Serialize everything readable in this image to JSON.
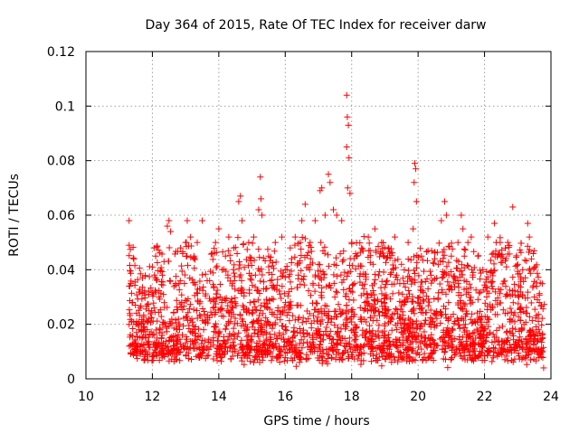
{
  "chart_data": {
    "type": "scatter",
    "title": "Day 364 of 2015, Rate Of TEC Index for receiver darw",
    "xlabel": "GPS time / hours",
    "ylabel": "ROTI / TECUs",
    "xlim": [
      10,
      24
    ],
    "ylim": [
      0,
      0.12
    ],
    "x_ticks": [
      10,
      12,
      14,
      16,
      18,
      20,
      22,
      24
    ],
    "x_tick_labels": [
      "10",
      "12",
      "14",
      "16",
      "18",
      "20",
      "22",
      "24"
    ],
    "y_ticks": [
      0,
      0.02,
      0.04,
      0.06,
      0.08,
      0.1,
      0.12
    ],
    "y_tick_labels": [
      "0",
      "0.02",
      "0.04",
      "0.06",
      "0.08",
      "0.1",
      "0.12"
    ],
    "grid": true,
    "marker": "plus",
    "color": "#ff0000",
    "series": [
      {
        "name": "ROTI",
        "points": [
          [
            11.3,
            0.058
          ],
          [
            11.3,
            0.049
          ],
          [
            11.35,
            0.035
          ],
          [
            11.4,
            0.028
          ],
          [
            11.5,
            0.02
          ],
          [
            11.6,
            0.018
          ],
          [
            11.7,
            0.037
          ],
          [
            11.8,
            0.015
          ],
          [
            11.9,
            0.025
          ],
          [
            12.0,
            0.041
          ],
          [
            12.05,
            0.048
          ],
          [
            12.1,
            0.045
          ],
          [
            12.2,
            0.03
          ],
          [
            12.3,
            0.038
          ],
          [
            12.35,
            0.043
          ],
          [
            12.45,
            0.056
          ],
          [
            12.5,
            0.058
          ],
          [
            12.55,
            0.054
          ],
          [
            12.7,
            0.035
          ],
          [
            12.85,
            0.048
          ],
          [
            13.0,
            0.05
          ],
          [
            13.05,
            0.058
          ],
          [
            13.15,
            0.052
          ],
          [
            13.25,
            0.045
          ],
          [
            13.35,
            0.05
          ],
          [
            13.5,
            0.058
          ],
          [
            13.65,
            0.036
          ],
          [
            13.8,
            0.046
          ],
          [
            13.9,
            0.05
          ],
          [
            14.0,
            0.055
          ],
          [
            14.1,
            0.04
          ],
          [
            14.2,
            0.045
          ],
          [
            14.3,
            0.052
          ],
          [
            14.45,
            0.048
          ],
          [
            14.6,
            0.065
          ],
          [
            14.65,
            0.067
          ],
          [
            14.7,
            0.058
          ],
          [
            14.9,
            0.05
          ],
          [
            15.05,
            0.052
          ],
          [
            15.2,
            0.062
          ],
          [
            15.25,
            0.074
          ],
          [
            15.27,
            0.066
          ],
          [
            15.3,
            0.06
          ],
          [
            15.5,
            0.045
          ],
          [
            15.7,
            0.05
          ],
          [
            15.9,
            0.052
          ],
          [
            16.0,
            0.04
          ],
          [
            16.15,
            0.048
          ],
          [
            16.3,
            0.052
          ],
          [
            16.45,
            0.05
          ],
          [
            16.5,
            0.058
          ],
          [
            16.6,
            0.064
          ],
          [
            16.75,
            0.05
          ],
          [
            16.9,
            0.058
          ],
          [
            17.05,
            0.069
          ],
          [
            17.1,
            0.07
          ],
          [
            17.2,
            0.06
          ],
          [
            17.3,
            0.075
          ],
          [
            17.35,
            0.072
          ],
          [
            17.45,
            0.062
          ],
          [
            17.55,
            0.06
          ],
          [
            17.7,
            0.058
          ],
          [
            17.85,
            0.104
          ],
          [
            17.87,
            0.096
          ],
          [
            17.9,
            0.093
          ],
          [
            17.85,
            0.085
          ],
          [
            17.92,
            0.081
          ],
          [
            17.88,
            0.07
          ],
          [
            17.95,
            0.068
          ],
          [
            18.0,
            0.05
          ],
          [
            18.3,
            0.048
          ],
          [
            18.5,
            0.052
          ],
          [
            18.7,
            0.055
          ],
          [
            18.9,
            0.05
          ],
          [
            19.1,
            0.048
          ],
          [
            19.3,
            0.052
          ],
          [
            19.5,
            0.042
          ],
          [
            19.7,
            0.05
          ],
          [
            19.85,
            0.055
          ],
          [
            19.9,
            0.079
          ],
          [
            19.93,
            0.077
          ],
          [
            19.88,
            0.072
          ],
          [
            19.95,
            0.065
          ],
          [
            20.1,
            0.045
          ],
          [
            20.3,
            0.047
          ],
          [
            20.5,
            0.044
          ],
          [
            20.7,
            0.058
          ],
          [
            20.8,
            0.065
          ],
          [
            20.85,
            0.06
          ],
          [
            21.0,
            0.045
          ],
          [
            21.2,
            0.05
          ],
          [
            21.3,
            0.06
          ],
          [
            21.35,
            0.055
          ],
          [
            21.5,
            0.05
          ],
          [
            21.6,
            0.052
          ],
          [
            21.8,
            0.045
          ],
          [
            21.95,
            0.04
          ],
          [
            22.1,
            0.052
          ],
          [
            22.3,
            0.057
          ],
          [
            22.35,
            0.05
          ],
          [
            22.5,
            0.045
          ],
          [
            22.7,
            0.05
          ],
          [
            22.85,
            0.063
          ],
          [
            23.0,
            0.042
          ],
          [
            23.15,
            0.04
          ],
          [
            23.3,
            0.057
          ],
          [
            23.35,
            0.052
          ],
          [
            23.5,
            0.03
          ],
          [
            23.65,
            0.028
          ],
          [
            23.75,
            0.01
          ],
          [
            23.78,
            0.004
          ]
        ],
        "baseline": {
          "x_range": [
            11.3,
            23.8
          ],
          "typical_range": [
            0.005,
            0.035
          ],
          "density_note": "dense cloud of points, one per sample, roughly every 30 s"
        }
      }
    ]
  }
}
